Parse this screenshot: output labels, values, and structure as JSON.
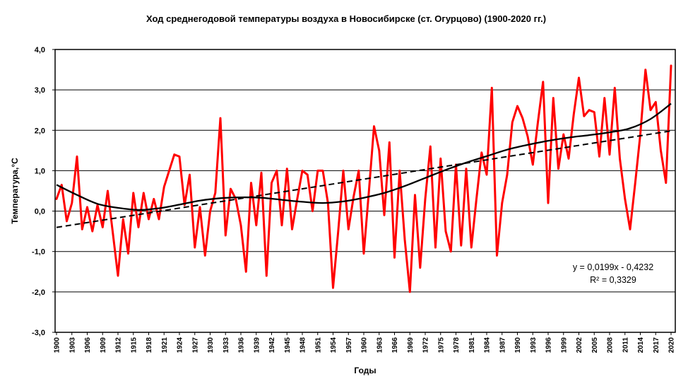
{
  "chart_data": {
    "type": "line",
    "title": "Ход среднегодовой температуры воздуха в Новосибирске (ст. Огурцово) (1900-2020 гг.)",
    "xlabel": "Годы",
    "ylabel": "Температура,°С",
    "legend": "none",
    "grid": "horizontal",
    "x_start": 1900,
    "x_end": 2020,
    "x_tick_step": 3,
    "ylim": [
      -3.0,
      4.0
    ],
    "y_tick_step": 1.0,
    "y_tick_labels": [
      "4,0",
      "3,0",
      "2,0",
      "1,0",
      "0,0",
      "-1,0",
      "-2,0",
      "-3,0"
    ],
    "x_tick_labels": [
      "1900",
      "1903",
      "1906",
      "1909",
      "1912",
      "1915",
      "1918",
      "1921",
      "1924",
      "1927",
      "1930",
      "1933",
      "1936",
      "1939",
      "1942",
      "1945",
      "1948",
      "1951",
      "1954",
      "1957",
      "1960",
      "1963",
      "1966",
      "1969",
      "1972",
      "1975",
      "1978",
      "1981",
      "1984",
      "1987",
      "1990",
      "1993",
      "1996",
      "1999",
      "2002",
      "2005",
      "2008",
      "2011",
      "2014",
      "2017",
      "2020"
    ],
    "annotation": {
      "equation": "y = 0,0199x - 0,4232",
      "r_squared": "R² = 0,3329"
    },
    "series": [
      {
        "name": "annual-mean-temperature",
        "style": "jagged-line",
        "color": "#FF0000",
        "x_first_year": 1900,
        "values": [
          0.3,
          0.65,
          -0.25,
          0.2,
          1.35,
          -0.45,
          0.1,
          -0.5,
          0.15,
          -0.4,
          0.5,
          -0.55,
          -1.6,
          -0.2,
          -1.05,
          0.45,
          -0.4,
          0.45,
          -0.2,
          0.3,
          -0.2,
          0.6,
          1.0,
          1.4,
          1.35,
          0.15,
          0.9,
          -0.9,
          0.1,
          -1.1,
          0.0,
          0.45,
          2.3,
          -0.6,
          0.55,
          0.3,
          -0.35,
          -1.5,
          0.7,
          -0.35,
          0.95,
          -1.6,
          0.7,
          1.0,
          -0.35,
          1.05,
          -0.45,
          0.3,
          1.0,
          0.9,
          0.0,
          1.0,
          1.0,
          0.2,
          -1.9,
          -0.5,
          1.0,
          -0.45,
          0.35,
          1.0,
          -1.05,
          0.5,
          2.1,
          1.5,
          -0.1,
          1.7,
          -1.15,
          1.0,
          -0.7,
          -2.0,
          0.4,
          -1.4,
          0.3,
          1.6,
          -0.9,
          1.3,
          -0.5,
          -1.0,
          1.15,
          -0.85,
          1.05,
          -0.9,
          0.3,
          1.45,
          0.9,
          3.05,
          -1.1,
          0.2,
          0.9,
          2.2,
          2.6,
          2.3,
          1.85,
          1.15,
          2.2,
          3.2,
          0.2,
          2.8,
          1.05,
          1.9,
          1.3,
          2.4,
          3.3,
          2.35,
          2.5,
          2.45,
          1.35,
          2.8,
          1.4,
          3.05,
          1.3,
          0.3,
          -0.45,
          0.7,
          1.9,
          3.5,
          2.5,
          2.7,
          1.5,
          0.7,
          3.6
        ]
      },
      {
        "name": "smoothed-trend",
        "style": "smooth-line",
        "color": "#000000",
        "anchor_years": [
          1900,
          1904,
          1908,
          1912,
          1916,
          1920,
          1924,
          1928,
          1932,
          1936,
          1940,
          1944,
          1948,
          1952,
          1956,
          1960,
          1964,
          1968,
          1972,
          1976,
          1980,
          1984,
          1988,
          1992,
          1996,
          2000,
          2004,
          2008,
          2012,
          2016,
          2020
        ],
        "anchor_values": [
          0.65,
          0.4,
          0.18,
          0.08,
          0.03,
          0.07,
          0.16,
          0.26,
          0.32,
          0.34,
          0.33,
          0.28,
          0.23,
          0.2,
          0.24,
          0.33,
          0.45,
          0.62,
          0.82,
          1.02,
          1.2,
          1.36,
          1.52,
          1.64,
          1.74,
          1.82,
          1.88,
          1.95,
          2.05,
          2.28,
          2.66
        ]
      },
      {
        "name": "linear-trend",
        "style": "dashed-line",
        "color": "#000000",
        "slope": 0.0199,
        "intercept": -0.4232
      }
    ],
    "colors": {
      "data_line": "#FF0000",
      "trend_lines": "#000000",
      "grid": "#000000",
      "background": "#FFFFFF",
      "text": "#000000"
    }
  }
}
